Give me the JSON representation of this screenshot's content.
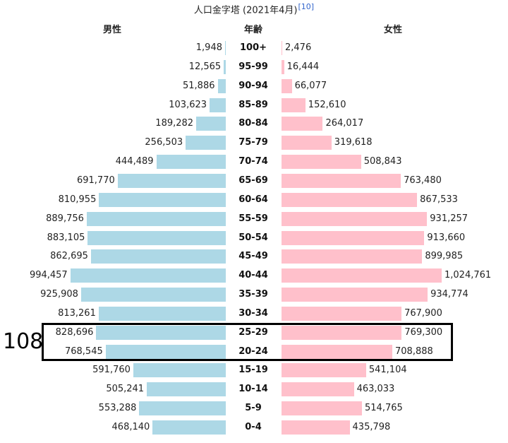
{
  "chart_data": {
    "type": "bar",
    "title": "人口金字塔 (2021年4月)",
    "title_ref": "[10]",
    "male_label": "男性",
    "age_label": "年齢",
    "female_label": "女性",
    "categories": [
      "100+",
      "95-99",
      "90-94",
      "85-89",
      "80-84",
      "75-79",
      "70-74",
      "65-69",
      "60-64",
      "55-59",
      "50-54",
      "45-49",
      "40-44",
      "35-39",
      "30-34",
      "25-29",
      "20-24",
      "15-19",
      "10-14",
      "5-9",
      "0-4"
    ],
    "series": [
      {
        "name": "男性",
        "values": [
          1948,
          12565,
          51886,
          103623,
          189282,
          256503,
          444489,
          691770,
          810955,
          889756,
          883105,
          862695,
          994457,
          925908,
          813261,
          828696,
          768545,
          591760,
          505241,
          553288,
          468140
        ]
      },
      {
        "name": "女性",
        "values": [
          2476,
          16444,
          66077,
          152610,
          264017,
          319618,
          508843,
          763480,
          867533,
          931257,
          913660,
          899985,
          1024761,
          934774,
          767900,
          769300,
          708888,
          541104,
          463033,
          514765,
          435798
        ]
      }
    ],
    "colors": {
      "male": "#add8e6",
      "female": "#ffc0cb"
    },
    "annotation": {
      "label": "108",
      "rows": [
        "25-29",
        "20-24"
      ]
    }
  }
}
